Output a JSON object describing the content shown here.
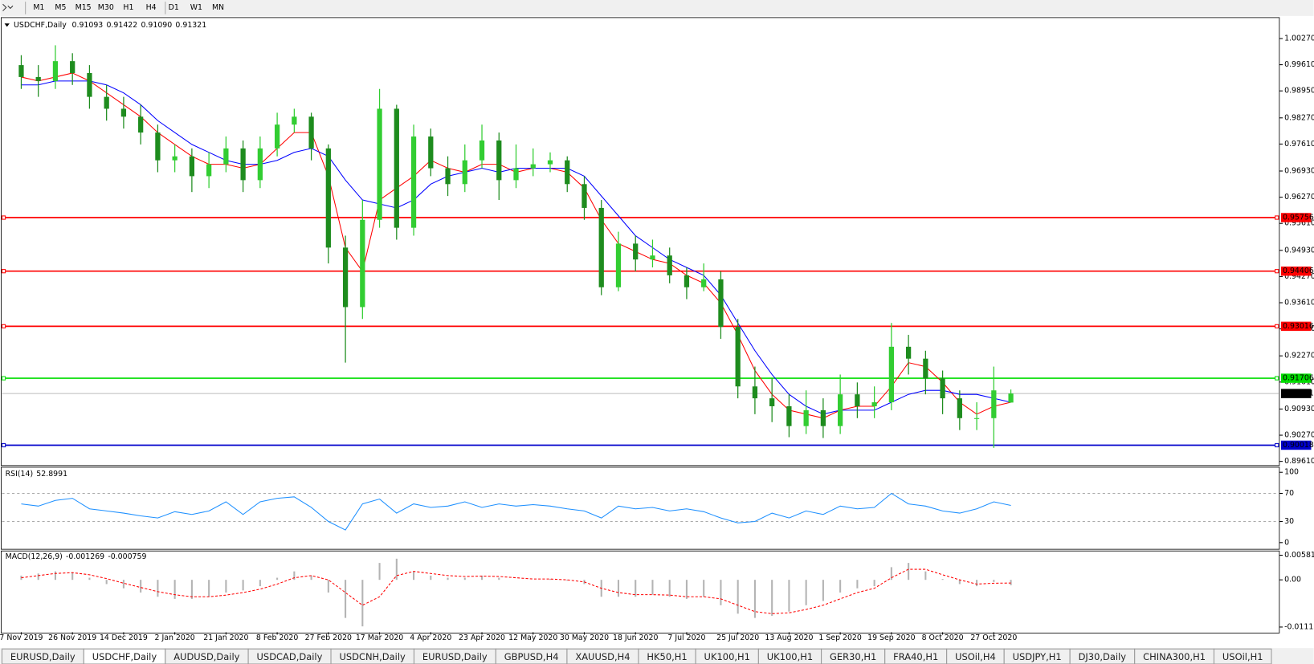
{
  "toolbar": {
    "timeframes": [
      "M1",
      "M5",
      "M15",
      "M30",
      "H1",
      "H4",
      "D1",
      "W1",
      "MN"
    ]
  },
  "chart_data": [
    {
      "type": "candlestick",
      "title": "USDCHF,Daily",
      "header_values": [
        0.91093,
        0.91422,
        {
          "value": 0.9109,
          "label": "0.91090"
        },
        0.91321
      ],
      "categories": [
        "7 Nov 2019",
        null,
        null,
        "26 Nov 2019",
        null,
        null,
        "14 Dec 2019",
        null,
        null,
        "2 Jan 2020",
        null,
        null,
        "21 Jan 2020",
        null,
        null,
        "8 Feb 2020",
        null,
        null,
        "27 Feb 2020",
        null,
        null,
        "17 Mar 2020",
        null,
        null,
        "4 Apr 2020",
        null,
        null,
        "23 Apr 2020",
        null,
        null,
        "12 May 2020",
        null,
        null,
        "30 May 2020",
        null,
        null,
        "18 Jun 2020",
        null,
        null,
        "7 Jul 2020",
        null,
        null,
        "25 Jul 2020",
        null,
        null,
        "13 Aug 2020",
        null,
        null,
        "1 Sep 2020",
        null,
        null,
        "19 Sep 2020",
        null,
        null,
        "8 Oct 2020",
        null,
        null,
        "27 Oct 2020",
        null
      ],
      "open": [
        0.996,
        0.993,
        0.992,
        0.997,
        0.994,
        0.988,
        0.985,
        0.983,
        0.979,
        0.972,
        0.973,
        0.968,
        0.971,
        0.975,
        0.967,
        0.975,
        0.981,
        0.983,
        0.975,
        0.95,
        0.935,
        0.957,
        0.985,
        0.955,
        0.978,
        0.97,
        0.966,
        0.972,
        0.977,
        0.967,
        0.97,
        0.971,
        0.972,
        0.966,
        0.96,
        0.94,
        0.951,
        0.947,
        0.948,
        0.943,
        0.94,
        0.942,
        0.93,
        0.915,
        0.912,
        0.91,
        0.905,
        0.909,
        0.905,
        0.913,
        0.91,
        0.911,
        0.925,
        0.922,
        0.917,
        0.912,
        0.907,
        0.907,
        0.91093
      ],
      "high": [
        0.9985,
        0.996,
        1.001,
        0.999,
        0.996,
        0.991,
        0.988,
        0.986,
        0.981,
        0.976,
        0.975,
        0.974,
        0.978,
        0.977,
        0.978,
        0.984,
        0.985,
        0.984,
        0.976,
        0.953,
        0.962,
        0.99,
        0.986,
        0.981,
        0.98,
        0.973,
        0.976,
        0.981,
        0.979,
        0.976,
        0.975,
        0.974,
        0.973,
        0.968,
        0.962,
        0.954,
        0.953,
        0.952,
        0.95,
        0.945,
        0.946,
        0.944,
        0.932,
        0.92,
        0.917,
        0.913,
        0.914,
        0.912,
        0.918,
        0.916,
        0.915,
        0.931,
        0.928,
        0.924,
        0.919,
        0.914,
        0.911,
        0.92,
        0.91422
      ],
      "low": [
        0.99,
        0.988,
        0.99,
        0.991,
        0.985,
        0.982,
        0.98,
        0.976,
        0.969,
        0.969,
        0.964,
        0.965,
        0.969,
        0.964,
        0.965,
        0.973,
        0.979,
        0.972,
        0.946,
        0.921,
        0.932,
        0.955,
        0.952,
        0.953,
        0.968,
        0.963,
        0.964,
        0.97,
        0.962,
        0.965,
        0.968,
        0.969,
        0.964,
        0.957,
        0.938,
        0.939,
        0.944,
        0.945,
        0.941,
        0.937,
        0.939,
        0.927,
        0.912,
        0.908,
        0.906,
        0.9022,
        0.903,
        0.902,
        0.903,
        0.907,
        0.907,
        0.909,
        0.918,
        0.913,
        0.908,
        0.904,
        0.904,
        0.8995,
        0.9109
      ],
      "close": [
        0.993,
        0.992,
        0.997,
        0.994,
        0.988,
        0.985,
        0.983,
        0.979,
        0.972,
        0.973,
        0.968,
        0.971,
        0.975,
        0.967,
        0.975,
        0.981,
        0.983,
        0.975,
        0.95,
        0.935,
        0.957,
        0.985,
        0.955,
        0.978,
        0.97,
        0.966,
        0.972,
        0.977,
        0.967,
        0.97,
        0.971,
        0.972,
        0.966,
        0.96,
        0.94,
        0.951,
        0.947,
        0.948,
        0.943,
        0.94,
        0.942,
        0.93,
        0.915,
        0.912,
        0.91,
        0.905,
        0.909,
        0.905,
        0.913,
        0.91,
        0.911,
        0.925,
        0.922,
        0.917,
        0.912,
        0.907,
        0.907,
        0.914,
        0.91321
      ],
      "up_color": "#32cd32",
      "down_color": "#1e8c1e",
      "series": [
        {
          "color": "#ff0000",
          "values": [
            0.993,
            0.992,
            0.993,
            0.994,
            0.992,
            0.989,
            0.986,
            0.983,
            0.979,
            0.976,
            0.973,
            0.971,
            0.971,
            0.97,
            0.971,
            0.975,
            0.979,
            0.979,
            0.968,
            0.95,
            0.944,
            0.962,
            0.965,
            0.968,
            0.972,
            0.97,
            0.969,
            0.971,
            0.971,
            0.969,
            0.97,
            0.97,
            0.969,
            0.965,
            0.957,
            0.951,
            0.949,
            0.947,
            0.946,
            0.943,
            0.941,
            0.936,
            0.928,
            0.919,
            0.913,
            0.909,
            0.908,
            0.907,
            0.909,
            0.91,
            0.91,
            0.915,
            0.921,
            0.92,
            0.916,
            0.911,
            0.908,
            0.91,
            0.911
          ]
        },
        {
          "color": "#0000ff",
          "values": [
            0.991,
            0.991,
            0.992,
            0.992,
            0.992,
            0.991,
            0.989,
            0.986,
            0.982,
            0.979,
            0.976,
            0.974,
            0.972,
            0.971,
            0.971,
            0.972,
            0.974,
            0.975,
            0.973,
            0.967,
            0.962,
            0.961,
            0.96,
            0.962,
            0.966,
            0.968,
            0.969,
            0.97,
            0.969,
            0.97,
            0.97,
            0.97,
            0.97,
            0.968,
            0.963,
            0.958,
            0.953,
            0.95,
            0.947,
            0.945,
            0.943,
            0.938,
            0.931,
            0.924,
            0.918,
            0.913,
            0.91,
            0.908,
            0.909,
            0.909,
            0.909,
            0.911,
            0.913,
            0.914,
            0.914,
            0.913,
            0.913,
            0.912,
            0.911
          ]
        }
      ],
      "levels": [
        {
          "value": 0.95756,
          "color": "#ff0000"
        },
        {
          "value": 0.94406,
          "color": "#ff0000"
        },
        {
          "value": 0.93016,
          "color": "#ff0000"
        },
        {
          "value": 0.91706,
          "color": "#00dd00"
        },
        {
          "value": 0.90018,
          "color": "#0000cc"
        }
      ],
      "current_price": 0.91321,
      "ylim": [
        0.89526,
        1.00777
      ],
      "yticks": [
        {
          "value": 1.0027,
          "label": "1.00270"
        },
        {
          "value": 0.9961,
          "label": "0.99610"
        },
        {
          "value": 0.9895,
          "label": "0.98950"
        },
        {
          "value": 0.9827,
          "label": "0.98270"
        },
        {
          "value": 0.9761,
          "label": "0.97610"
        },
        {
          "value": 0.9693,
          "label": "0.96930"
        },
        {
          "value": 0.9627,
          "label": "0.96270"
        },
        {
          "value": 0.9561,
          "label": "0.95610"
        },
        {
          "value": 0.9493,
          "label": "0.94930"
        },
        {
          "value": 0.9427,
          "label": "0.94270"
        },
        {
          "value": 0.9361,
          "label": "0.93610"
        },
        {
          "value": 0.9295,
          "label": "0.92950"
        },
        {
          "value": 0.9227,
          "label": "0.92270"
        },
        {
          "value": 0.9161,
          "label": "0.91610"
        },
        {
          "value": 0.9093,
          "label": "0.90930"
        },
        {
          "value": 0.9027,
          "label": "0.90270"
        },
        {
          "value": 0.8961,
          "label": "0.89610"
        }
      ]
    },
    {
      "type": "line",
      "title": "RSI(14)",
      "current": [
        52.8991
      ],
      "color": "#1e90ff",
      "values": [
        55,
        52,
        60,
        63,
        48,
        45,
        42,
        38,
        35,
        44,
        40,
        45,
        58,
        40,
        58,
        63,
        65,
        50,
        30,
        18,
        55,
        62,
        42,
        55,
        50,
        52,
        58,
        50,
        55,
        52,
        54,
        52,
        48,
        45,
        35,
        52,
        48,
        50,
        45,
        48,
        44,
        35,
        28,
        30,
        42,
        35,
        45,
        40,
        52,
        48,
        50,
        70,
        55,
        52,
        45,
        42,
        48,
        58,
        52.8991
      ],
      "ylim": [
        -8.3,
        106
      ],
      "yticks": [
        100,
        70,
        30,
        0
      ],
      "grid_ticks": [
        70,
        30
      ]
    },
    {
      "type": "bar",
      "title": "MACD(12,26,9)",
      "current": [
        -0.001269,
        -0.000759
      ],
      "color": "#b4b4b4",
      "values": [
        0.001,
        0.0015,
        0.002,
        0.0018,
        0.0005,
        -0.001,
        -0.002,
        -0.003,
        -0.004,
        -0.0045,
        -0.0045,
        -0.004,
        -0.003,
        -0.0025,
        -0.0015,
        0.0005,
        0.002,
        0.001,
        -0.003,
        -0.009,
        -0.011,
        0.004,
        0.005,
        0.002,
        0.001,
        0.0005,
        0.0005,
        0.001,
        0.0005,
        0,
        0,
        0.0002,
        -0.0002,
        -0.001,
        -0.004,
        -0.004,
        -0.004,
        -0.0035,
        -0.004,
        -0.0045,
        -0.004,
        -0.006,
        -0.008,
        -0.009,
        -0.0085,
        -0.0075,
        -0.006,
        -0.005,
        -0.003,
        -0.002,
        -0.0015,
        0.003,
        0.004,
        0.002,
        0.0002,
        -0.001,
        -0.0015,
        -0.0005,
        -0.001269
      ],
      "series": [
        {
          "color": "#ff0000",
          "dashed": true,
          "values": [
            0.0005,
            0.001,
            0.0015,
            0.0017,
            0.0012,
            0.0003,
            -0.0008,
            -0.0018,
            -0.0028,
            -0.0035,
            -0.004,
            -0.004,
            -0.0036,
            -0.003,
            -0.0022,
            -0.001,
            0.0005,
            0.001,
            0,
            -0.003,
            -0.006,
            -0.004,
            0.001,
            0.002,
            0.0015,
            0.001,
            0.0008,
            0.0009,
            0.0008,
            0.0005,
            0.0002,
            0.0002,
            0,
            -0.0005,
            -0.002,
            -0.003,
            -0.0035,
            -0.0035,
            -0.0036,
            -0.004,
            -0.004,
            -0.0045,
            -0.006,
            -0.0075,
            -0.008,
            -0.0078,
            -0.007,
            -0.006,
            -0.0045,
            -0.003,
            -0.002,
            0.0005,
            0.0025,
            0.0025,
            0.0012,
            0,
            -0.001,
            -0.0008,
            -0.000759
          ]
        }
      ],
      "ylim": [
        -0.01237,
        0.00663
      ],
      "yticks": [
        0.005818,
        {
          "value": 0,
          "label": "0.00"
        },
        {
          "value": -0.011154,
          "label": "-0.01115"
        }
      ]
    }
  ],
  "tabs": {
    "active": 1,
    "items": [
      "EURUSD,Daily",
      "USDCHF,Daily",
      "AUDUSD,Daily",
      "USDCAD,Daily",
      "USDCNH,Daily",
      "EURUSD,Daily",
      "GBPUSD,H4",
      "XAUUSD,H4",
      "HK50,H1",
      "UK100,H1",
      "UK100,H1",
      "GER30,H1",
      "FRA40,H1",
      "USOil,H4",
      "USDJPY,H1",
      "DJ30,Daily",
      "CHINA300,H1",
      "USOil,H1"
    ]
  }
}
